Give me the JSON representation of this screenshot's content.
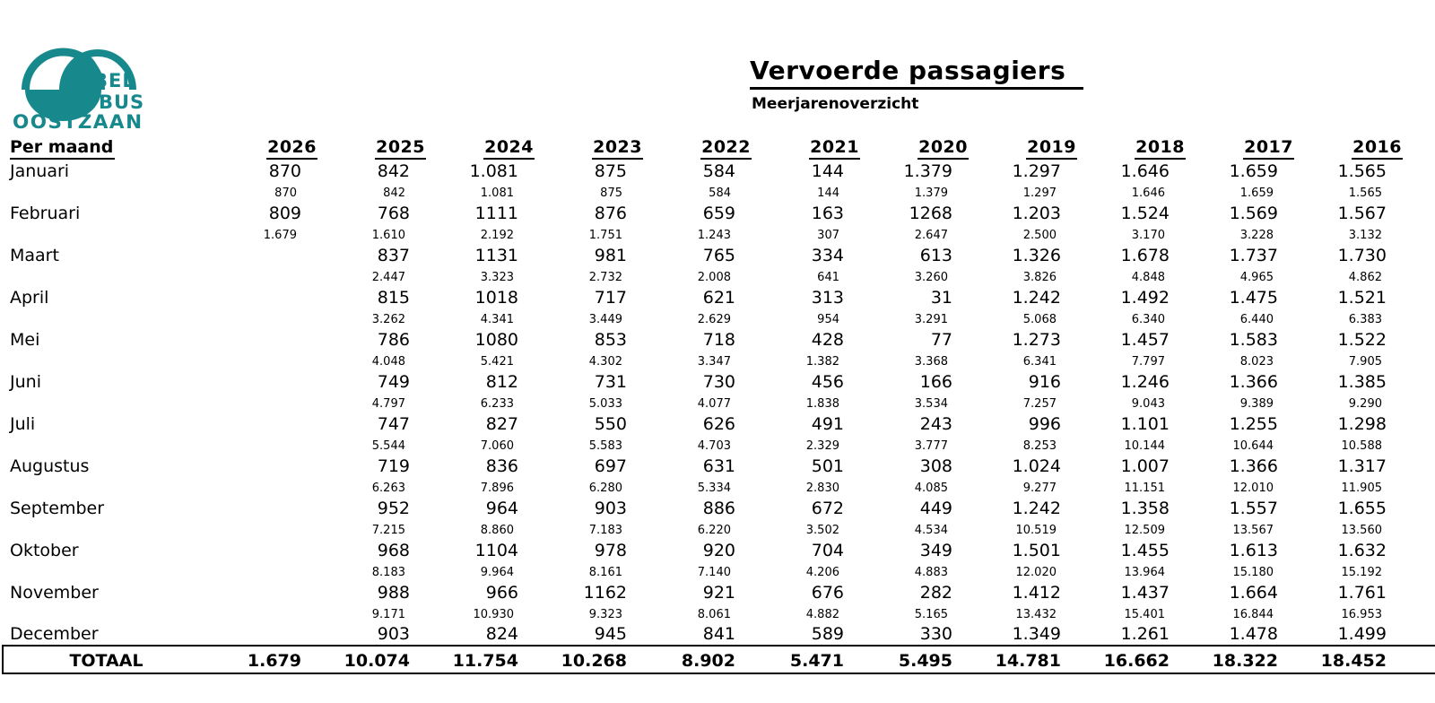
{
  "logo": {
    "color": "#17898D",
    "line1": "BEL",
    "line2": "BUS",
    "line3": "OOSTZAAN"
  },
  "header": {
    "title": "Vervoerde passagiers",
    "subtitle": "Meerjarenoverzicht"
  },
  "table": {
    "row_label_header": "Per maand",
    "years": [
      "2026",
      "2025",
      "2024",
      "2023",
      "2022",
      "2021",
      "2020",
      "2019",
      "2018",
      "2017",
      "2016"
    ],
    "months": [
      {
        "label": "Januari",
        "values": [
          "870",
          "842",
          "1.081",
          "875",
          "584",
          "144",
          "1.379",
          "1.297",
          "1.646",
          "1.659",
          "1.565"
        ],
        "cumulative": [
          "870",
          "842",
          "1.081",
          "875",
          "584",
          "144",
          "1.379",
          "1.297",
          "1.646",
          "1.659",
          "1.565"
        ]
      },
      {
        "label": "Februari",
        "values": [
          "809",
          "768",
          "1111",
          "876",
          "659",
          "163",
          "1268",
          "1.203",
          "1.524",
          "1.569",
          "1.567"
        ],
        "cumulative": [
          "1.679",
          "1.610",
          "2.192",
          "1.751",
          "1.243",
          "307",
          "2.647",
          "2.500",
          "3.170",
          "3.228",
          "3.132"
        ]
      },
      {
        "label": "Maart",
        "values": [
          "",
          "837",
          "1131",
          "981",
          "765",
          "334",
          "613",
          "1.326",
          "1.678",
          "1.737",
          "1.730"
        ],
        "cumulative": [
          "",
          "2.447",
          "3.323",
          "2.732",
          "2.008",
          "641",
          "3.260",
          "3.826",
          "4.848",
          "4.965",
          "4.862"
        ]
      },
      {
        "label": "April",
        "values": [
          "",
          "815",
          "1018",
          "717",
          "621",
          "313",
          "31",
          "1.242",
          "1.492",
          "1.475",
          "1.521"
        ],
        "cumulative": [
          "",
          "3.262",
          "4.341",
          "3.449",
          "2.629",
          "954",
          "3.291",
          "5.068",
          "6.340",
          "6.440",
          "6.383"
        ]
      },
      {
        "label": "Mei",
        "values": [
          "",
          "786",
          "1080",
          "853",
          "718",
          "428",
          "77",
          "1.273",
          "1.457",
          "1.583",
          "1.522"
        ],
        "cumulative": [
          "",
          "4.048",
          "5.421",
          "4.302",
          "3.347",
          "1.382",
          "3.368",
          "6.341",
          "7.797",
          "8.023",
          "7.905"
        ]
      },
      {
        "label": "Juni",
        "values": [
          "",
          "749",
          "812",
          "731",
          "730",
          "456",
          "166",
          "916",
          "1.246",
          "1.366",
          "1.385"
        ],
        "cumulative": [
          "",
          "4.797",
          "6.233",
          "5.033",
          "4.077",
          "1.838",
          "3.534",
          "7.257",
          "9.043",
          "9.389",
          "9.290"
        ]
      },
      {
        "label": "Juli",
        "values": [
          "",
          "747",
          "827",
          "550",
          "626",
          "491",
          "243",
          "996",
          "1.101",
          "1.255",
          "1.298"
        ],
        "cumulative": [
          "",
          "5.544",
          "7.060",
          "5.583",
          "4.703",
          "2.329",
          "3.777",
          "8.253",
          "10.144",
          "10.644",
          "10.588"
        ]
      },
      {
        "label": "Augustus",
        "values": [
          "",
          "719",
          "836",
          "697",
          "631",
          "501",
          "308",
          "1.024",
          "1.007",
          "1.366",
          "1.317"
        ],
        "cumulative": [
          "",
          "6.263",
          "7.896",
          "6.280",
          "5.334",
          "2.830",
          "4.085",
          "9.277",
          "11.151",
          "12.010",
          "11.905"
        ]
      },
      {
        "label": "September",
        "values": [
          "",
          "952",
          "964",
          "903",
          "886",
          "672",
          "449",
          "1.242",
          "1.358",
          "1.557",
          "1.655"
        ],
        "cumulative": [
          "",
          "7.215",
          "8.860",
          "7.183",
          "6.220",
          "3.502",
          "4.534",
          "10.519",
          "12.509",
          "13.567",
          "13.560"
        ]
      },
      {
        "label": "Oktober",
        "values": [
          "",
          "968",
          "1104",
          "978",
          "920",
          "704",
          "349",
          "1.501",
          "1.455",
          "1.613",
          "1.632"
        ],
        "cumulative": [
          "",
          "8.183",
          "9.964",
          "8.161",
          "7.140",
          "4.206",
          "4.883",
          "12.020",
          "13.964",
          "15.180",
          "15.192"
        ]
      },
      {
        "label": "November",
        "values": [
          "",
          "988",
          "966",
          "1162",
          "921",
          "676",
          "282",
          "1.412",
          "1.437",
          "1.664",
          "1.761"
        ],
        "cumulative": [
          "",
          "9.171",
          "10.930",
          "9.323",
          "8.061",
          "4.882",
          "5.165",
          "13.432",
          "15.401",
          "16.844",
          "16.953"
        ]
      },
      {
        "label": "December",
        "values": [
          "",
          "903",
          "824",
          "945",
          "841",
          "589",
          "330",
          "1.349",
          "1.261",
          "1.478",
          "1.499"
        ],
        "cumulative": null
      }
    ],
    "total": {
      "label": "TOTAAL",
      "values": [
        "1.679",
        "10.074",
        "11.754",
        "10.268",
        "8.902",
        "5.471",
        "5.495",
        "14.781",
        "16.662",
        "18.322",
        "18.452"
      ]
    }
  }
}
